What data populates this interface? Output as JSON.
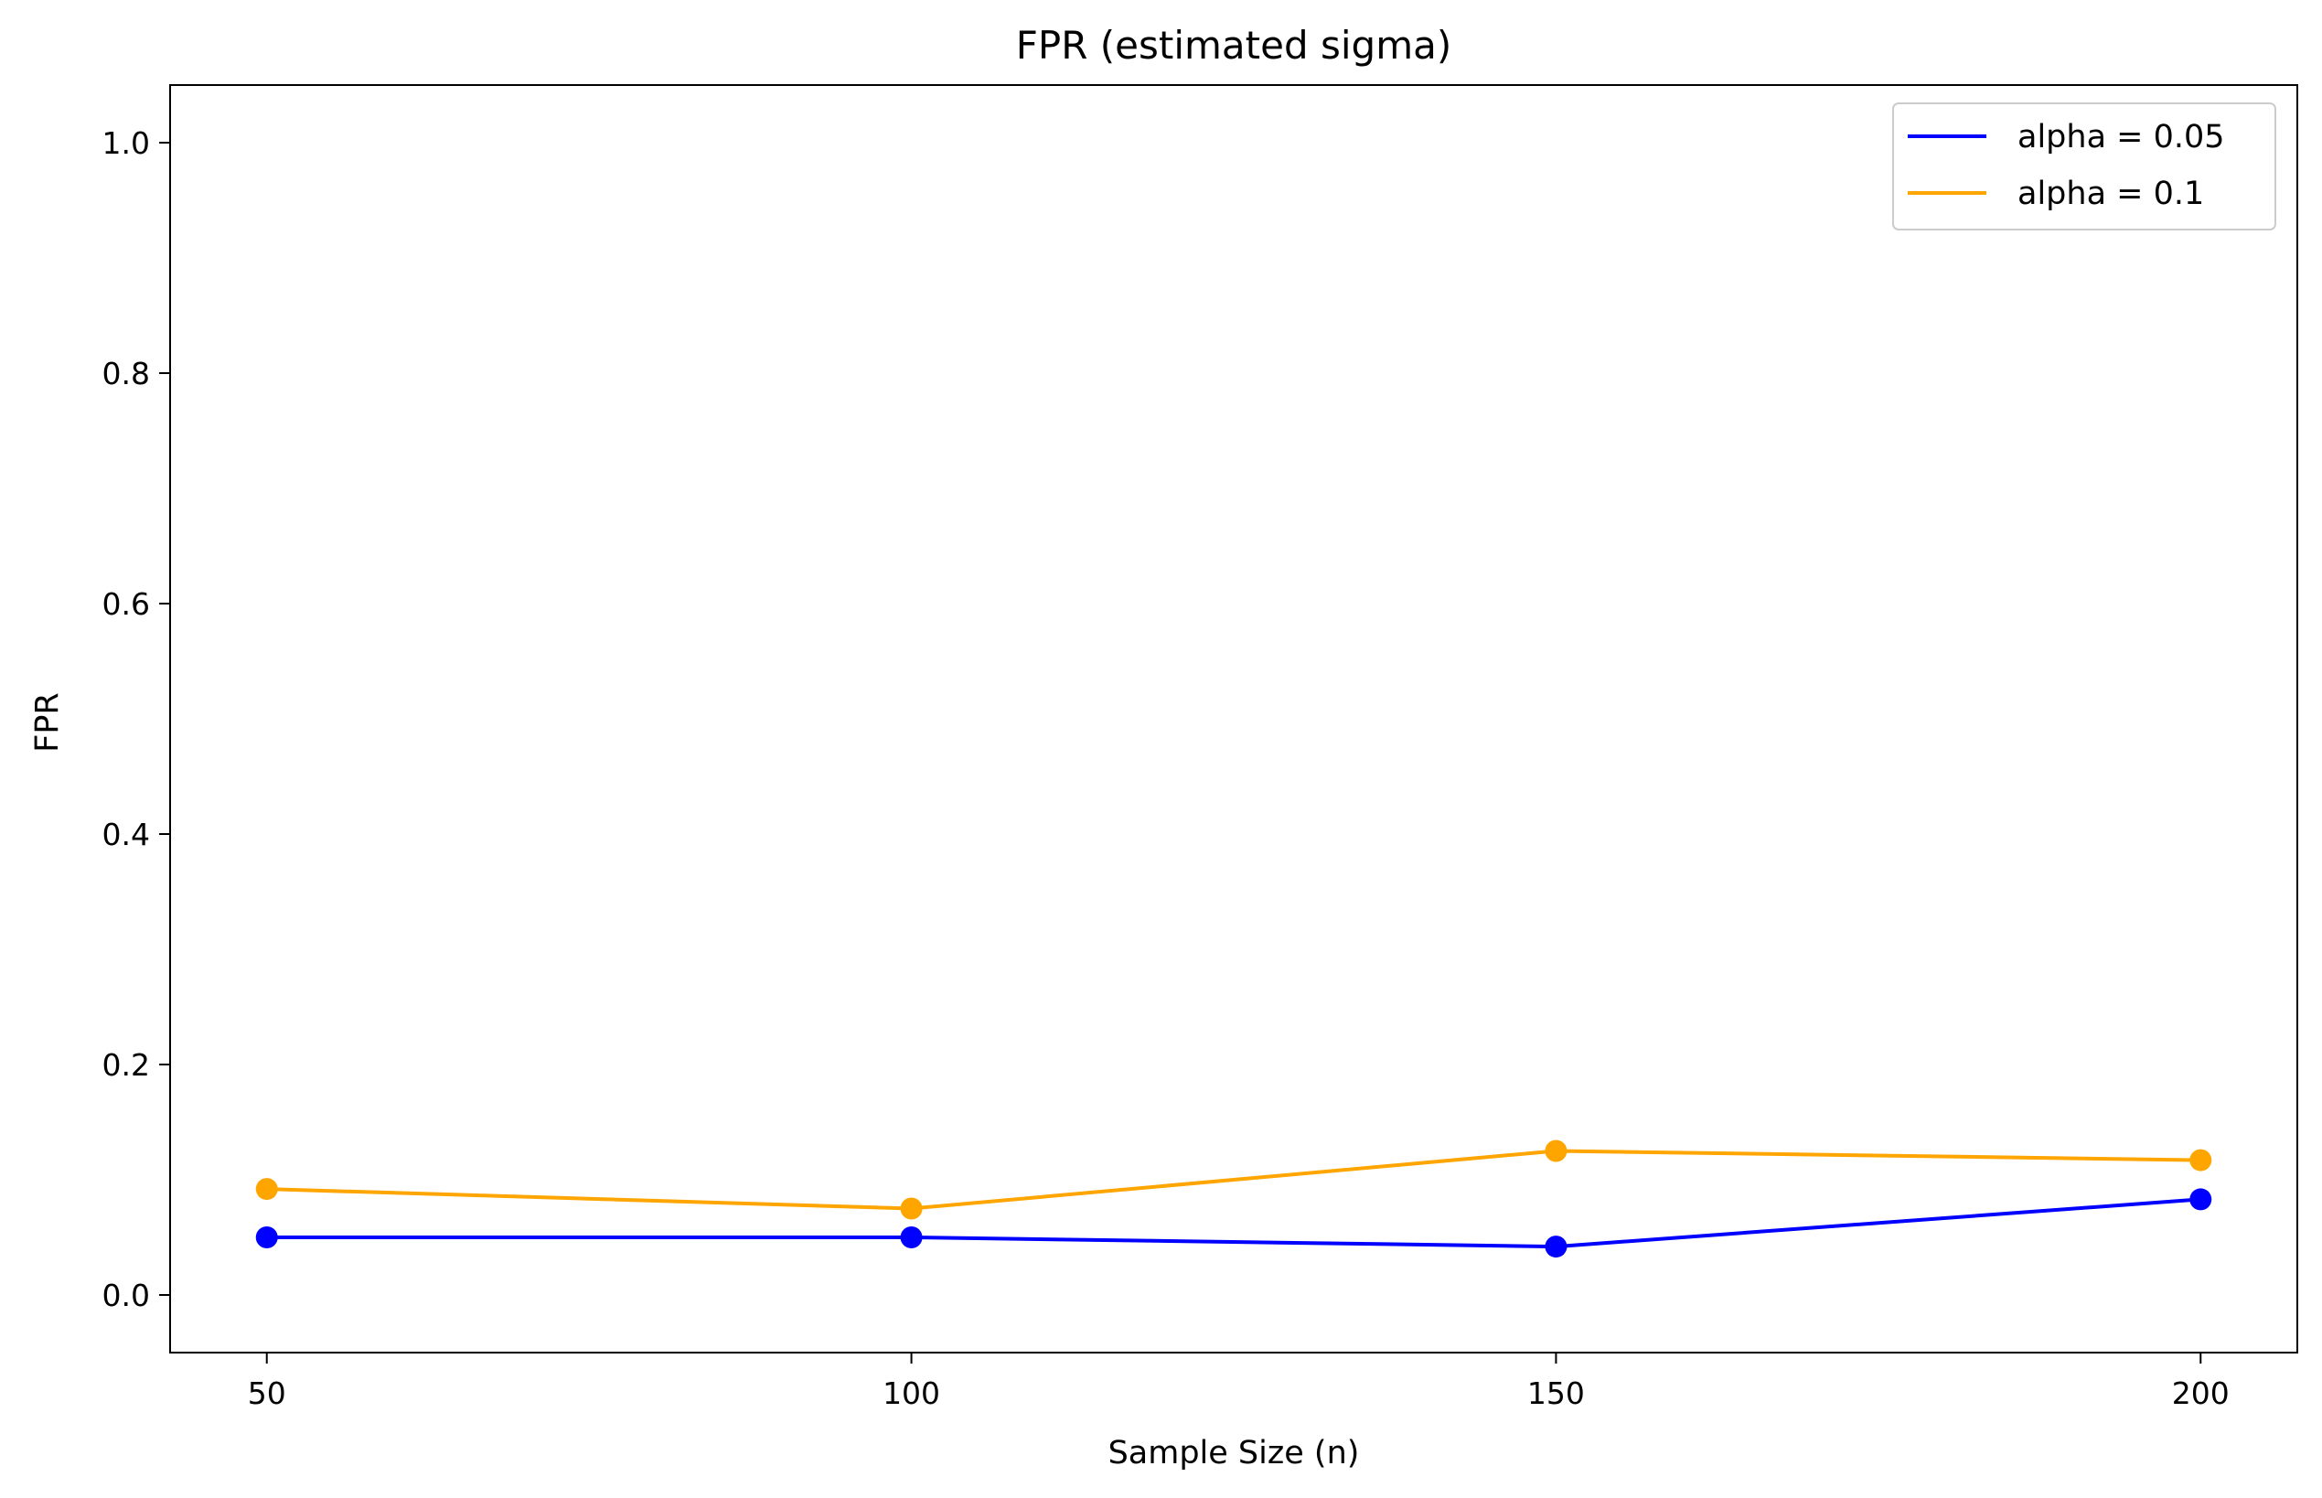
{
  "chart_data": {
    "type": "line",
    "title": "FPR (estimated sigma)",
    "xlabel": "Sample Size (n)",
    "ylabel": "FPR",
    "x": [
      50,
      100,
      150,
      200
    ],
    "xticks": [
      "50",
      "100",
      "150",
      "200"
    ],
    "yticks": [
      "0.0",
      "0.2",
      "0.4",
      "0.6",
      "0.8",
      "1.0"
    ],
    "xlim": [
      42.5,
      207.5
    ],
    "ylim": [
      -0.05,
      1.05
    ],
    "grid": false,
    "legend_position": "top-right",
    "series": [
      {
        "name": "alpha = 0.05",
        "color": "#0000ff",
        "values": [
          0.05,
          0.05,
          0.042,
          0.083
        ]
      },
      {
        "name": "alpha = 0.1",
        "color": "#ffa500",
        "values": [
          0.092,
          0.075,
          0.125,
          0.117
        ]
      }
    ]
  }
}
